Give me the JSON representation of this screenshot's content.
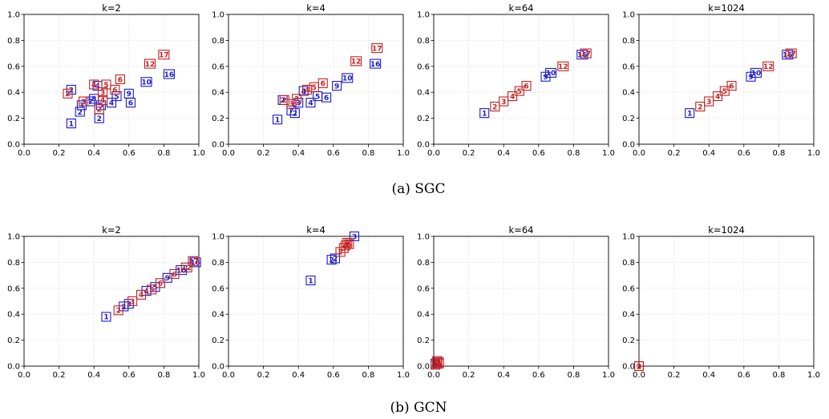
{
  "colors": {
    "blue": "#1a1acc",
    "red": "#c42020",
    "grid": "#e6e6e6"
  },
  "chart_data": [
    {
      "type": "scatter",
      "group": "SGC",
      "title": "k=2",
      "xlim": [
        0,
        1
      ],
      "ylim": [
        0,
        1
      ],
      "xticks": [
        "0.0",
        "0.2",
        "0.4",
        "0.6",
        "0.8",
        "1.0"
      ],
      "yticks": [
        "0.0",
        "0.2",
        "0.4",
        "0.6",
        "0.8",
        "1.0"
      ],
      "grid": true,
      "series": [
        {
          "color": "blue",
          "points": [
            {
              "x": 0.27,
              "y": 0.16,
              "label": "1"
            },
            {
              "x": 0.32,
              "y": 0.25,
              "label": "2"
            },
            {
              "x": 0.33,
              "y": 0.3,
              "label": "3"
            },
            {
              "x": 0.38,
              "y": 0.33,
              "label": "7"
            },
            {
              "x": 0.4,
              "y": 0.35,
              "label": "8"
            },
            {
              "x": 0.42,
              "y": 0.45,
              "label": "4"
            },
            {
              "x": 0.44,
              "y": 0.3,
              "label": "5"
            },
            {
              "x": 0.5,
              "y": 0.32,
              "label": "4"
            },
            {
              "x": 0.53,
              "y": 0.37,
              "label": "5"
            },
            {
              "x": 0.43,
              "y": 0.2,
              "label": "2"
            },
            {
              "x": 0.6,
              "y": 0.39,
              "label": "9"
            },
            {
              "x": 0.61,
              "y": 0.32,
              "label": "6"
            },
            {
              "x": 0.7,
              "y": 0.48,
              "label": "10"
            },
            {
              "x": 0.83,
              "y": 0.54,
              "label": "16"
            },
            {
              "x": 0.27,
              "y": 0.42,
              "label": "2"
            }
          ]
        },
        {
          "color": "red",
          "points": [
            {
              "x": 0.25,
              "y": 0.39,
              "label": "2"
            },
            {
              "x": 0.34,
              "y": 0.33,
              "label": "3"
            },
            {
              "x": 0.4,
              "y": 0.46,
              "label": "4"
            },
            {
              "x": 0.43,
              "y": 0.27,
              "label": "2"
            },
            {
              "x": 0.45,
              "y": 0.4,
              "label": "3"
            },
            {
              "x": 0.47,
              "y": 0.46,
              "label": "5"
            },
            {
              "x": 0.52,
              "y": 0.42,
              "label": "6"
            },
            {
              "x": 0.55,
              "y": 0.5,
              "label": "6"
            },
            {
              "x": 0.45,
              "y": 0.34,
              "label": "4"
            },
            {
              "x": 0.72,
              "y": 0.62,
              "label": "12"
            },
            {
              "x": 0.8,
              "y": 0.69,
              "label": "17"
            }
          ]
        }
      ]
    },
    {
      "type": "scatter",
      "group": "SGC",
      "title": "k=4",
      "xlim": [
        0,
        1
      ],
      "ylim": [
        0,
        1
      ],
      "xticks": [
        "0.0",
        "0.2",
        "0.4",
        "0.6",
        "0.8",
        "1.0"
      ],
      "yticks": [
        "0.0",
        "0.2",
        "0.4",
        "0.6",
        "0.8",
        "1.0"
      ],
      "grid": true,
      "series": [
        {
          "color": "blue",
          "points": [
            {
              "x": 0.28,
              "y": 0.19,
              "label": "1"
            },
            {
              "x": 0.36,
              "y": 0.26,
              "label": "7"
            },
            {
              "x": 0.38,
              "y": 0.24,
              "label": "2"
            },
            {
              "x": 0.4,
              "y": 0.32,
              "label": "3"
            },
            {
              "x": 0.43,
              "y": 0.41,
              "label": "4"
            },
            {
              "x": 0.47,
              "y": 0.32,
              "label": "4"
            },
            {
              "x": 0.51,
              "y": 0.37,
              "label": "5"
            },
            {
              "x": 0.56,
              "y": 0.36,
              "label": "6"
            },
            {
              "x": 0.62,
              "y": 0.45,
              "label": "9"
            },
            {
              "x": 0.68,
              "y": 0.51,
              "label": "10"
            },
            {
              "x": 0.84,
              "y": 0.62,
              "label": "16"
            },
            {
              "x": 0.31,
              "y": 0.34,
              "label": "2"
            }
          ]
        },
        {
          "color": "red",
          "points": [
            {
              "x": 0.32,
              "y": 0.34,
              "label": "2"
            },
            {
              "x": 0.36,
              "y": 0.31,
              "label": "3"
            },
            {
              "x": 0.39,
              "y": 0.35,
              "label": "3"
            },
            {
              "x": 0.45,
              "y": 0.42,
              "label": "4"
            },
            {
              "x": 0.49,
              "y": 0.44,
              "label": "5"
            },
            {
              "x": 0.54,
              "y": 0.47,
              "label": "6"
            },
            {
              "x": 0.73,
              "y": 0.64,
              "label": "12"
            },
            {
              "x": 0.85,
              "y": 0.74,
              "label": "17"
            }
          ]
        }
      ]
    },
    {
      "type": "scatter",
      "group": "SGC",
      "title": "k=64",
      "xlim": [
        0,
        1
      ],
      "ylim": [
        0,
        1
      ],
      "xticks": [
        "0.0",
        "0.2",
        "0.4",
        "0.6",
        "0.8",
        "1.0"
      ],
      "yticks": [
        "0.0",
        "0.2",
        "0.4",
        "0.6",
        "0.8",
        "1.0"
      ],
      "grid": true,
      "series": [
        {
          "color": "blue",
          "points": [
            {
              "x": 0.29,
              "y": 0.24,
              "label": "1"
            },
            {
              "x": 0.64,
              "y": 0.52,
              "label": "9"
            },
            {
              "x": 0.67,
              "y": 0.55,
              "label": "10"
            },
            {
              "x": 0.85,
              "y": 0.69,
              "label": "16"
            }
          ]
        },
        {
          "color": "red",
          "points": [
            {
              "x": 0.35,
              "y": 0.29,
              "label": "2"
            },
            {
              "x": 0.4,
              "y": 0.33,
              "label": "3"
            },
            {
              "x": 0.45,
              "y": 0.37,
              "label": "4"
            },
            {
              "x": 0.49,
              "y": 0.41,
              "label": "5"
            },
            {
              "x": 0.53,
              "y": 0.45,
              "label": "6"
            },
            {
              "x": 0.74,
              "y": 0.6,
              "label": "12"
            },
            {
              "x": 0.87,
              "y": 0.7,
              "label": "17"
            }
          ]
        }
      ]
    },
    {
      "type": "scatter",
      "group": "SGC",
      "title": "k=1024",
      "xlim": [
        0,
        1
      ],
      "ylim": [
        0,
        1
      ],
      "xticks": [
        "0.0",
        "0.2",
        "0.4",
        "0.6",
        "0.8",
        "1.0"
      ],
      "yticks": [
        "0.0",
        "0.2",
        "0.4",
        "0.6",
        "0.8",
        "1.0"
      ],
      "grid": true,
      "series": [
        {
          "color": "blue",
          "points": [
            {
              "x": 0.29,
              "y": 0.24,
              "label": "1"
            },
            {
              "x": 0.64,
              "y": 0.52,
              "label": "9"
            },
            {
              "x": 0.67,
              "y": 0.55,
              "label": "10"
            },
            {
              "x": 0.85,
              "y": 0.69,
              "label": "16"
            }
          ]
        },
        {
          "color": "red",
          "points": [
            {
              "x": 0.35,
              "y": 0.29,
              "label": "2"
            },
            {
              "x": 0.4,
              "y": 0.33,
              "label": "3"
            },
            {
              "x": 0.45,
              "y": 0.37,
              "label": "4"
            },
            {
              "x": 0.49,
              "y": 0.41,
              "label": "5"
            },
            {
              "x": 0.53,
              "y": 0.45,
              "label": "6"
            },
            {
              "x": 0.74,
              "y": 0.6,
              "label": "12"
            },
            {
              "x": 0.87,
              "y": 0.7,
              "label": "17"
            }
          ]
        }
      ]
    },
    {
      "type": "scatter",
      "group": "GCN",
      "title": "k=2",
      "xlim": [
        0,
        1
      ],
      "ylim": [
        0,
        1
      ],
      "xticks": [
        "0.0",
        "0.2",
        "0.4",
        "0.6",
        "0.8",
        "1.0"
      ],
      "yticks": [
        "0.0",
        "0.2",
        "0.4",
        "0.6",
        "0.8",
        "1.0"
      ],
      "grid": true,
      "series": [
        {
          "color": "blue",
          "points": [
            {
              "x": 0.47,
              "y": 0.38,
              "label": "1"
            },
            {
              "x": 0.57,
              "y": 0.46,
              "label": "2"
            },
            {
              "x": 0.6,
              "y": 0.48,
              "label": "3"
            },
            {
              "x": 0.7,
              "y": 0.58,
              "label": "4"
            },
            {
              "x": 0.75,
              "y": 0.61,
              "label": "5"
            },
            {
              "x": 0.82,
              "y": 0.68,
              "label": "9"
            },
            {
              "x": 0.9,
              "y": 0.74,
              "label": "10"
            },
            {
              "x": 0.98,
              "y": 0.8,
              "label": "16"
            }
          ]
        },
        {
          "color": "red",
          "points": [
            {
              "x": 0.54,
              "y": 0.43,
              "label": "2"
            },
            {
              "x": 0.62,
              "y": 0.5,
              "label": "3"
            },
            {
              "x": 0.67,
              "y": 0.55,
              "label": "4"
            },
            {
              "x": 0.73,
              "y": 0.59,
              "label": "5"
            },
            {
              "x": 0.78,
              "y": 0.64,
              "label": "6"
            },
            {
              "x": 0.86,
              "y": 0.71,
              "label": "6"
            },
            {
              "x": 0.93,
              "y": 0.76,
              "label": "12"
            },
            {
              "x": 0.97,
              "y": 0.81,
              "label": "17"
            }
          ]
        }
      ]
    },
    {
      "type": "scatter",
      "group": "GCN",
      "title": "k=4",
      "xlim": [
        0,
        1
      ],
      "ylim": [
        0,
        1
      ],
      "xticks": [
        "0.0",
        "0.2",
        "0.4",
        "0.6",
        "0.8",
        "1.0"
      ],
      "yticks": [
        "0.0",
        "0.2",
        "0.4",
        "0.6",
        "0.8",
        "1.0"
      ],
      "grid": true,
      "series": [
        {
          "color": "blue",
          "points": [
            {
              "x": 0.47,
              "y": 0.66,
              "label": "1"
            },
            {
              "x": 0.59,
              "y": 0.82,
              "label": "2"
            },
            {
              "x": 0.61,
              "y": 0.83,
              "label": "2"
            },
            {
              "x": 0.72,
              "y": 1.0,
              "label": "3"
            }
          ]
        },
        {
          "color": "red",
          "points": [
            {
              "x": 0.64,
              "y": 0.88,
              "label": "2"
            },
            {
              "x": 0.66,
              "y": 0.91,
              "label": "3"
            },
            {
              "x": 0.67,
              "y": 0.93,
              "label": "4"
            },
            {
              "x": 0.68,
              "y": 0.95,
              "label": "5"
            },
            {
              "x": 0.69,
              "y": 0.94,
              "label": "6"
            }
          ]
        }
      ]
    },
    {
      "type": "scatter",
      "group": "GCN",
      "title": "k=64",
      "xlim": [
        0,
        1
      ],
      "ylim": [
        0,
        1
      ],
      "xticks": [
        "0.0",
        "0.2",
        "0.4",
        "0.6",
        "0.8",
        "1.0"
      ],
      "yticks": [
        "0.0",
        "0.2",
        "0.4",
        "0.6",
        "0.8",
        "1.0"
      ],
      "grid": true,
      "series": [
        {
          "color": "blue",
          "points": [
            {
              "x": 0.01,
              "y": 0.02,
              "label": "1"
            },
            {
              "x": 0.02,
              "y": 0.03,
              "label": "2"
            }
          ]
        },
        {
          "color": "red",
          "points": [
            {
              "x": 0.01,
              "y": 0.01,
              "label": "2"
            },
            {
              "x": 0.02,
              "y": 0.02,
              "label": "3"
            },
            {
              "x": 0.03,
              "y": 0.03,
              "label": "4"
            },
            {
              "x": 0.02,
              "y": 0.04,
              "label": "5"
            },
            {
              "x": 0.03,
              "y": 0.02,
              "label": "6"
            }
          ]
        }
      ]
    },
    {
      "type": "scatter",
      "group": "GCN",
      "title": "k=1024",
      "xlim": [
        0,
        1
      ],
      "ylim": [
        0,
        1
      ],
      "xticks": [
        "0.0",
        "0.2",
        "0.4",
        "0.6",
        "0.8",
        "1.0"
      ],
      "yticks": [
        "0.0",
        "0.2",
        "0.4",
        "0.6",
        "0.8",
        "1.0"
      ],
      "grid": true,
      "series": [
        {
          "color": "blue",
          "points": [
            {
              "x": 0.0,
              "y": 0.0,
              "label": "1"
            }
          ]
        },
        {
          "color": "red",
          "points": [
            {
              "x": 0.0,
              "y": 0.0,
              "label": "2"
            },
            {
              "x": 0.0,
              "y": 0.0,
              "label": "3"
            }
          ]
        }
      ]
    }
  ],
  "captions": {
    "top": "(a)  SGC",
    "bottom": "(b)  GCN"
  }
}
